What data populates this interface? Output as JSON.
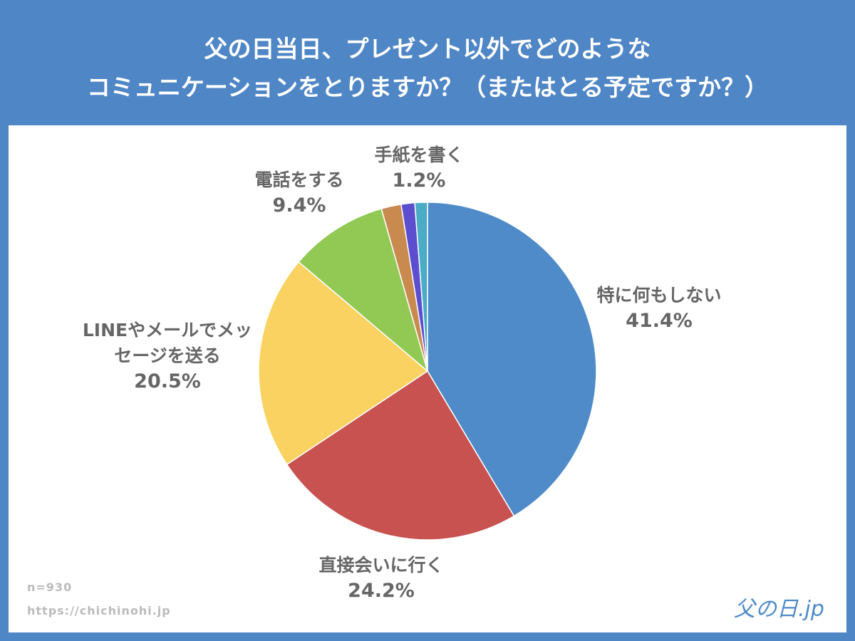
{
  "chart_data": {
    "type": "pie",
    "title": [
      "父の日当日、プレゼント以外でどのような",
      "コミュニケーションをとりますか？（またはとる予定ですか？）"
    ],
    "categories": [
      "特に何もしない",
      "直接会いに行く",
      "LINEやメールでメッセージを送る",
      "電話をする",
      null,
      null,
      "手紙を書く"
    ],
    "values": [
      41.4,
      24.2,
      20.5,
      9.4,
      1.9,
      1.3,
      1.2
    ],
    "value_labels": [
      "41.4%",
      "24.2%",
      "20.5%",
      "9.4%",
      null,
      null,
      "1.2%"
    ],
    "colors": [
      "#4f8bc9",
      "#c85250",
      "#f9d262",
      "#92c954",
      "#c98a50",
      "#5b4fcf",
      "#4bacc6"
    ],
    "note": "n=930",
    "source": "https://chichinohi.jp",
    "logo": "父の日.jp"
  }
}
